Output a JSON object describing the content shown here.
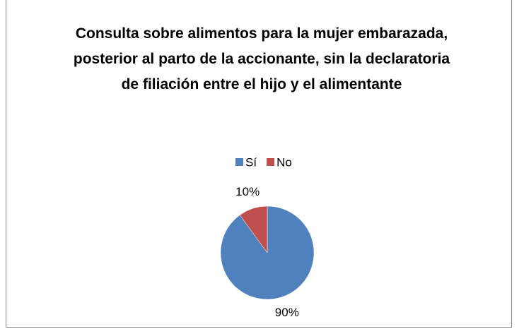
{
  "chart_data": {
    "type": "pie",
    "title": "Consulta sobre alimentos para la mujer embarazada, posterior al parto de la accionante, sin la declaratoria de filiación entre el hijo y el alimentante",
    "categories": [
      "Sí",
      "No"
    ],
    "values": [
      90,
      10
    ],
    "value_labels": [
      "90%",
      "10%"
    ],
    "colors": [
      "#4f81bd",
      "#c0504d"
    ],
    "legend": "top"
  }
}
